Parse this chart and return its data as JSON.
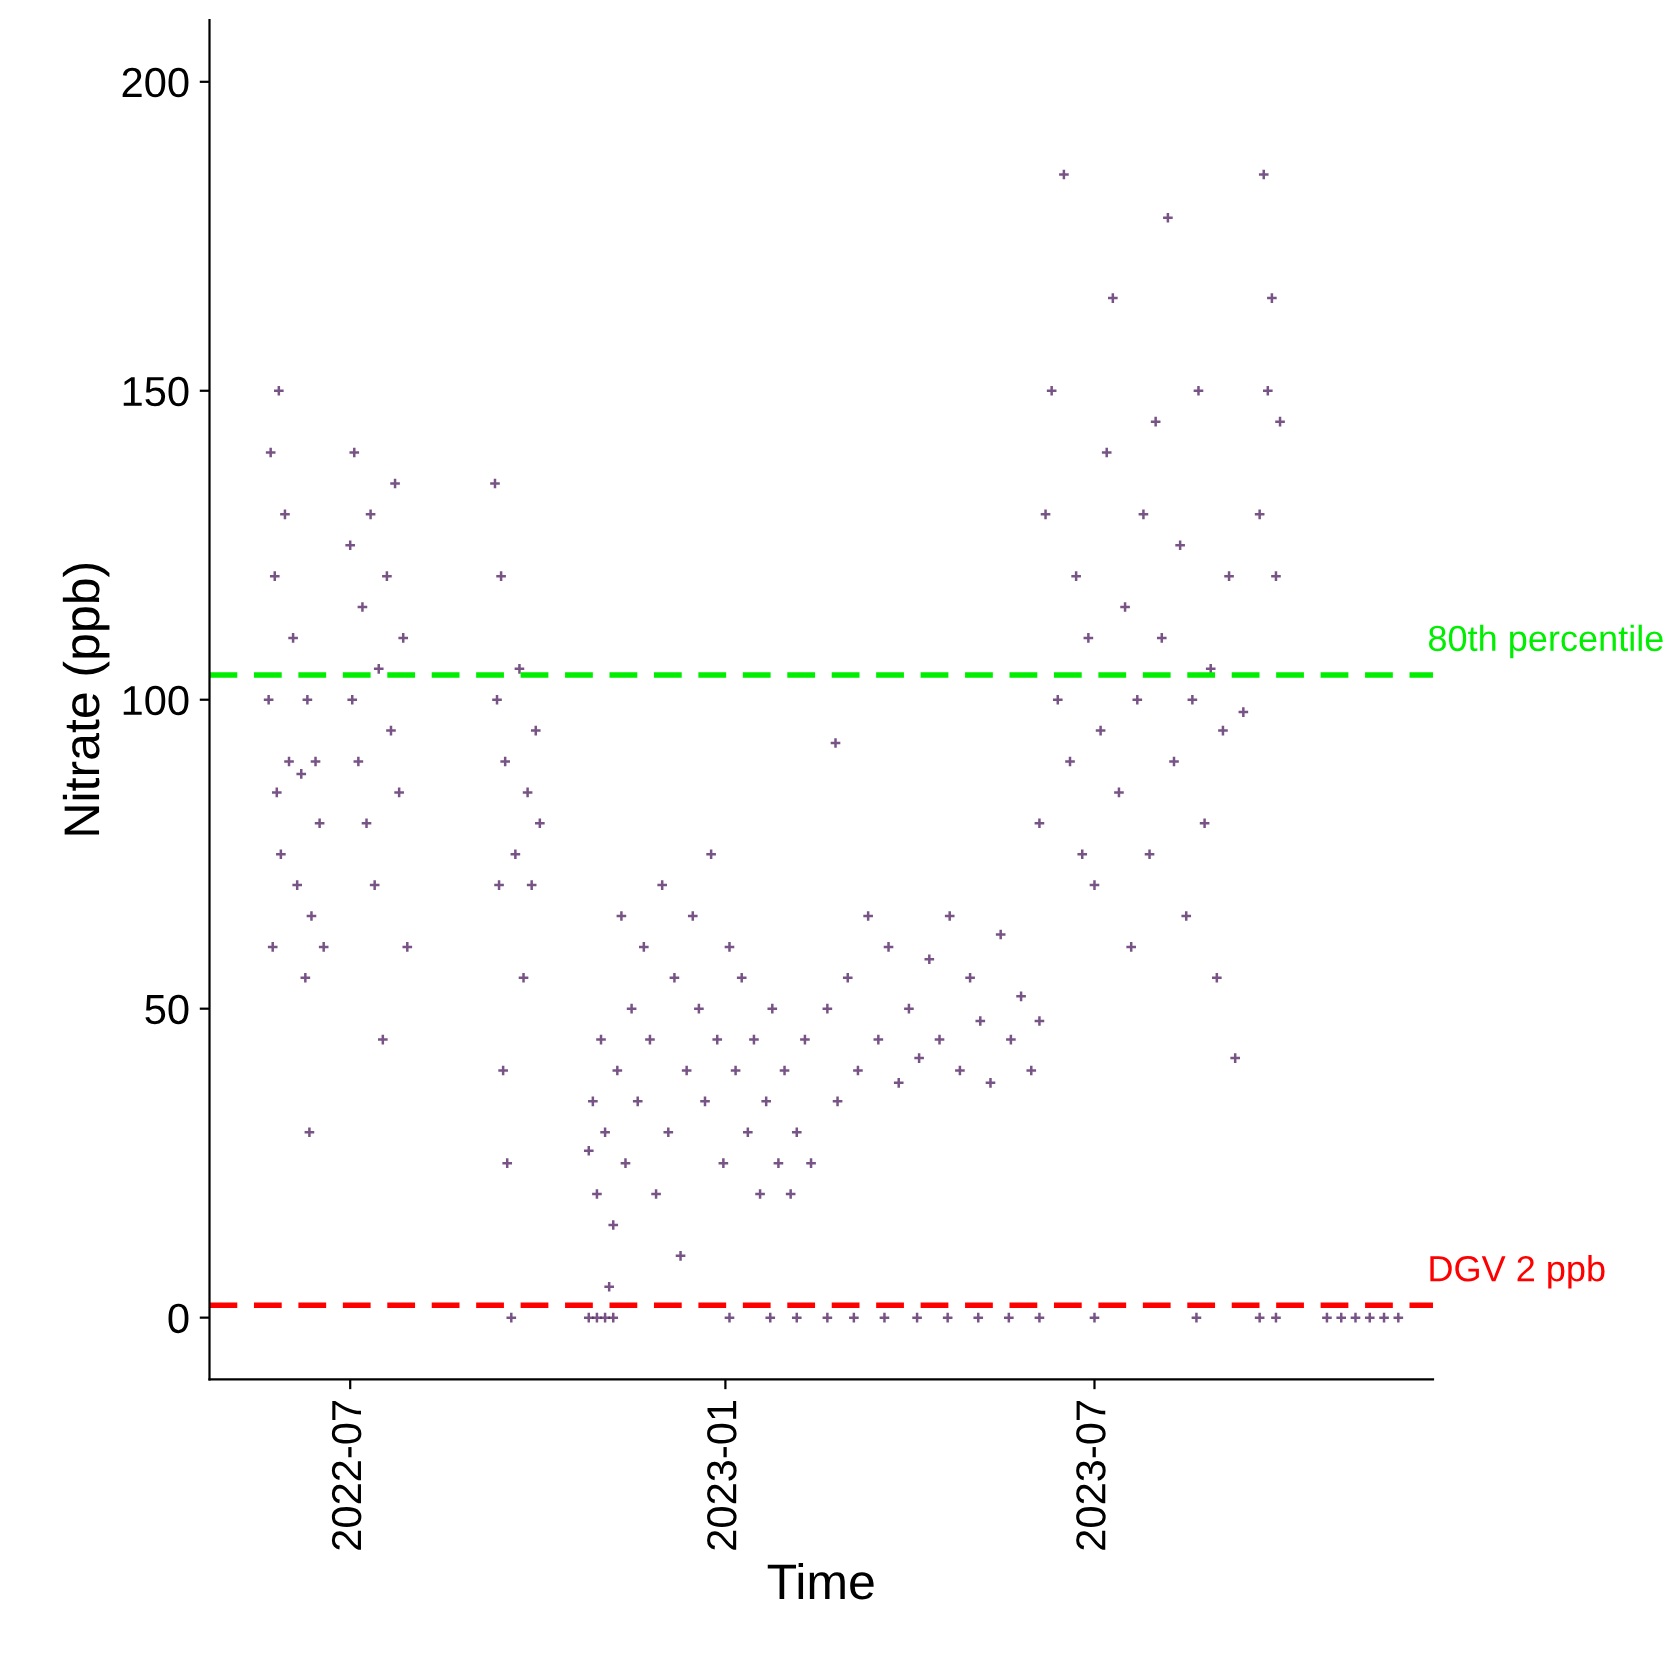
{
  "chart_data": {
    "type": "scatter",
    "xlabel": "Time",
    "ylabel": "Nitrate (ppb)",
    "xlim": [
      "2022-04-23",
      "2023-12-14"
    ],
    "ylim": [
      -10,
      210
    ],
    "xticks": [
      {
        "value": "2022-07-01",
        "label": "2022-07"
      },
      {
        "value": "2023-01-01",
        "label": "2023-01"
      },
      {
        "value": "2023-07-01",
        "label": "2023-07"
      }
    ],
    "yticks": [
      0,
      50,
      100,
      150,
      200
    ],
    "grid": false,
    "legend": false,
    "marker": "cross",
    "ref_lines": [
      {
        "axis": "y",
        "value": 104,
        "label": "80th percentile",
        "color": "#00ee00",
        "line_style": "dashed"
      },
      {
        "axis": "y",
        "value": 2,
        "label": "DGV 2 ppb",
        "color": "#ff0000",
        "line_style": "dashed"
      }
    ],
    "series": [
      {
        "color": "#4b1a5e",
        "x": [
          "2022-05-22",
          "2022-05-23",
          "2022-05-24",
          "2022-05-25",
          "2022-05-26",
          "2022-05-27",
          "2022-05-28",
          "2022-05-30",
          "2022-06-01",
          "2022-06-03",
          "2022-06-05",
          "2022-06-07",
          "2022-06-09",
          "2022-06-10",
          "2022-06-11",
          "2022-06-12",
          "2022-06-14",
          "2022-06-16",
          "2022-06-18",
          "2022-07-01",
          "2022-07-02",
          "2022-07-03",
          "2022-07-05",
          "2022-07-07",
          "2022-07-09",
          "2022-07-11",
          "2022-07-13",
          "2022-07-15",
          "2022-07-17",
          "2022-07-19",
          "2022-07-21",
          "2022-07-23",
          "2022-07-25",
          "2022-07-27",
          "2022-07-29",
          "2022-09-10",
          "2022-09-11",
          "2022-09-12",
          "2022-09-13",
          "2022-09-14",
          "2022-09-15",
          "2022-09-16",
          "2022-09-18",
          "2022-09-20",
          "2022-09-22",
          "2022-09-24",
          "2022-09-26",
          "2022-09-28",
          "2022-09-30",
          "2022-10-02",
          "2022-10-26",
          "2022-10-30",
          "2022-11-03",
          "2022-11-07",
          "2022-10-26",
          "2022-10-28",
          "2022-10-30",
          "2022-11-01",
          "2022-11-03",
          "2022-11-05",
          "2022-11-07",
          "2022-11-09",
          "2022-11-11",
          "2022-11-13",
          "2022-11-16",
          "2022-11-19",
          "2022-11-22",
          "2022-11-25",
          "2022-11-28",
          "2022-12-01",
          "2022-12-04",
          "2022-12-07",
          "2022-12-10",
          "2022-12-13",
          "2022-12-16",
          "2022-12-19",
          "2022-12-22",
          "2022-12-25",
          "2022-12-28",
          "2022-12-31",
          "2023-01-03",
          "2023-01-06",
          "2023-01-09",
          "2023-01-12",
          "2023-01-15",
          "2023-01-18",
          "2023-01-21",
          "2023-01-24",
          "2023-01-27",
          "2023-01-30",
          "2023-02-02",
          "2023-02-05",
          "2023-02-09",
          "2023-02-12",
          "2023-01-03",
          "2023-01-23",
          "2023-02-05",
          "2023-02-20",
          "2023-03-05",
          "2023-03-20",
          "2023-04-05",
          "2023-04-20",
          "2023-05-05",
          "2023-05-20",
          "2023-06-04",
          "2023-02-20",
          "2023-02-24",
          "2023-02-25",
          "2023-03-02",
          "2023-03-07",
          "2023-03-12",
          "2023-03-17",
          "2023-03-22",
          "2023-03-27",
          "2023-04-01",
          "2023-04-06",
          "2023-04-11",
          "2023-04-16",
          "2023-04-21",
          "2023-04-26",
          "2023-05-01",
          "2023-05-06",
          "2023-05-11",
          "2023-05-16",
          "2023-05-21",
          "2023-05-26",
          "2023-05-31",
          "2023-06-04",
          "2023-06-04",
          "2023-06-07",
          "2023-06-10",
          "2023-06-13",
          "2023-06-16",
          "2023-06-19",
          "2023-06-22",
          "2023-06-25",
          "2023-06-28",
          "2023-07-01",
          "2023-07-04",
          "2023-07-07",
          "2023-07-10",
          "2023-07-13",
          "2023-07-16",
          "2023-07-19",
          "2023-07-22",
          "2023-07-25",
          "2023-07-28",
          "2023-07-31",
          "2023-08-03",
          "2023-08-06",
          "2023-08-09",
          "2023-08-12",
          "2023-08-15",
          "2023-08-18",
          "2023-08-21",
          "2023-08-24",
          "2023-08-27",
          "2023-08-30",
          "2023-09-02",
          "2023-09-05",
          "2023-09-08",
          "2023-09-12",
          "2023-09-20",
          "2023-09-22",
          "2023-09-24",
          "2023-09-26",
          "2023-09-28",
          "2023-09-30",
          "2023-07-01",
          "2023-08-20",
          "2023-09-20",
          "2023-09-28",
          "2023-10-23",
          "2023-10-30",
          "2023-11-06",
          "2023-11-13",
          "2023-11-20",
          "2023-11-27"
        ],
        "values": [
          100,
          140,
          60,
          120,
          85,
          150,
          75,
          130,
          90,
          110,
          70,
          88,
          55,
          100,
          30,
          65,
          90,
          80,
          60,
          125,
          100,
          140,
          90,
          115,
          80,
          130,
          70,
          105,
          45,
          120,
          95,
          135,
          85,
          110,
          60,
          135,
          100,
          70,
          120,
          40,
          90,
          25,
          0,
          75,
          105,
          55,
          85,
          70,
          95,
          80,
          0,
          0,
          0,
          0,
          27,
          35,
          20,
          45,
          30,
          5,
          15,
          40,
          65,
          25,
          50,
          35,
          60,
          45,
          20,
          70,
          30,
          55,
          10,
          40,
          65,
          50,
          35,
          75,
          45,
          25,
          60,
          40,
          55,
          30,
          45,
          20,
          35,
          50,
          25,
          40,
          20,
          30,
          45,
          25,
          0,
          0,
          0,
          0,
          0,
          0,
          0,
          0,
          0,
          0,
          0,
          50,
          93,
          35,
          55,
          40,
          65,
          45,
          60,
          38,
          50,
          42,
          58,
          45,
          65,
          40,
          55,
          48,
          38,
          62,
          45,
          52,
          40,
          48,
          80,
          130,
          150,
          100,
          185,
          90,
          120,
          75,
          110,
          70,
          95,
          140,
          165,
          85,
          115,
          60,
          100,
          130,
          75,
          145,
          110,
          178,
          90,
          125,
          65,
          100,
          150,
          80,
          105,
          55,
          95,
          120,
          42,
          98,
          130,
          185,
          150,
          165,
          120,
          145,
          0,
          0,
          0,
          0,
          0,
          0,
          0,
          0,
          0,
          0
        ]
      }
    ]
  }
}
